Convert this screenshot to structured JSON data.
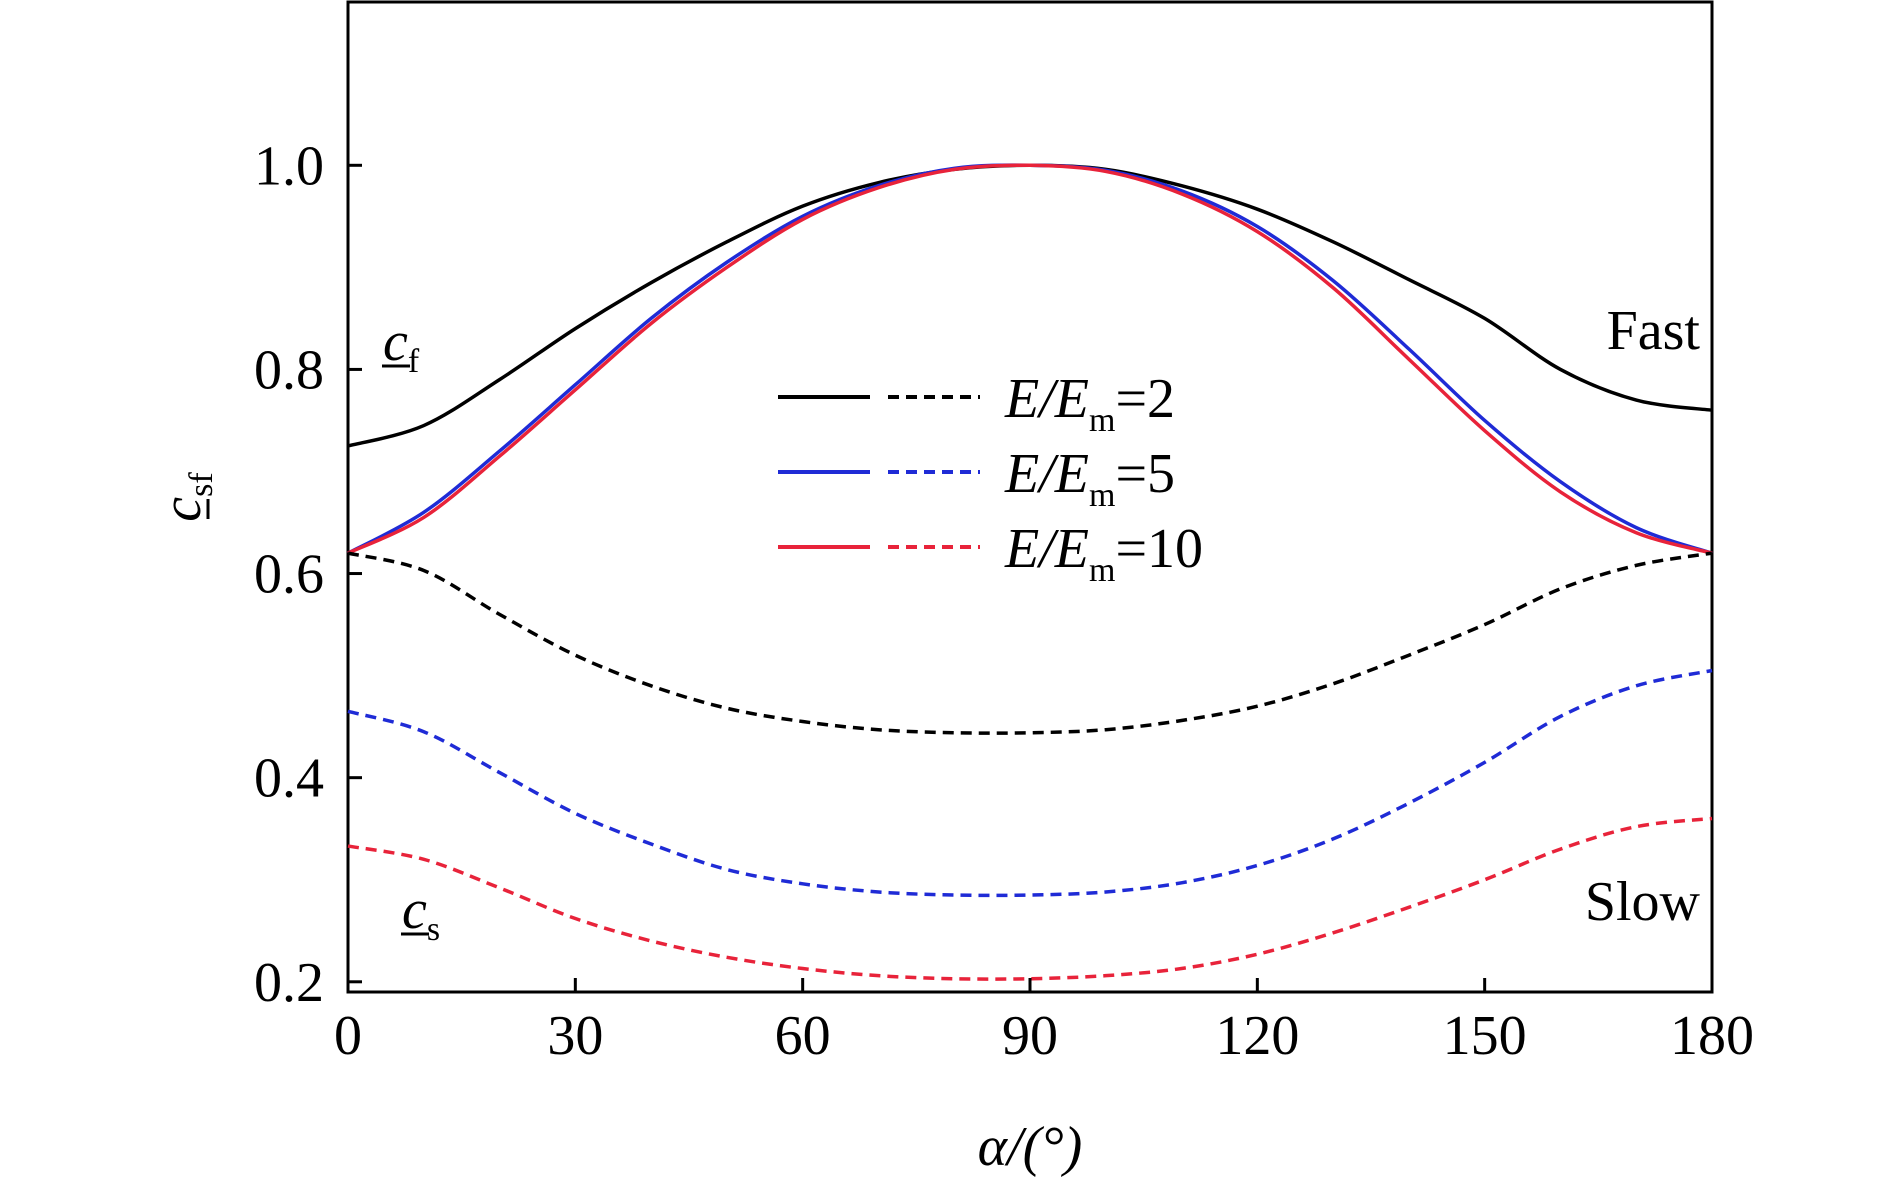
{
  "chart_data": {
    "type": "line",
    "xlabel": "α/(°)",
    "ylabel": "c_sf",
    "xlim": [
      0,
      180
    ],
    "ylim": [
      0.19,
      1.16
    ],
    "x_ticks": [
      "0",
      "30",
      "60",
      "90",
      "120",
      "150",
      "180"
    ],
    "y_ticks": [
      "0.2",
      "0.4",
      "0.6",
      "0.8",
      "1.0"
    ],
    "grid": false,
    "legend_position": "center",
    "legend": [
      {
        "label": "E/Em=2",
        "color": "#000000"
      },
      {
        "label": "E/Em=5",
        "color": "#1f2bd6"
      },
      {
        "label": "E/Em=10",
        "color": "#e8233a"
      }
    ],
    "annotations": {
      "fast_label": "Fast",
      "slow_label": "Slow",
      "cf_label": "c_f",
      "cs_label": "c_s"
    },
    "x": [
      0,
      10,
      20,
      30,
      40,
      50,
      60,
      70,
      80,
      90,
      100,
      110,
      120,
      130,
      140,
      150,
      160,
      170,
      180
    ],
    "series": [
      {
        "color": "#000000",
        "style": "solid",
        "values": [
          0.725,
          0.745,
          0.79,
          0.84,
          0.885,
          0.925,
          0.96,
          0.983,
          0.996,
          1.0,
          0.996,
          0.98,
          0.957,
          0.925,
          0.888,
          0.85,
          0.8,
          0.77,
          0.76
        ]
      },
      {
        "color": "#1f2bd6",
        "style": "solid",
        "values": [
          0.62,
          0.66,
          0.72,
          0.785,
          0.85,
          0.905,
          0.95,
          0.98,
          0.997,
          1.0,
          0.995,
          0.975,
          0.94,
          0.887,
          0.82,
          0.75,
          0.69,
          0.645,
          0.62
        ]
      },
      {
        "color": "#e8233a",
        "style": "solid",
        "values": [
          0.62,
          0.655,
          0.715,
          0.78,
          0.845,
          0.9,
          0.947,
          0.978,
          0.996,
          1.0,
          0.994,
          0.972,
          0.935,
          0.88,
          0.81,
          0.74,
          0.68,
          0.64,
          0.62
        ]
      },
      {
        "color": "#000000",
        "style": "dashed",
        "values": [
          0.62,
          0.603,
          0.56,
          0.52,
          0.49,
          0.468,
          0.455,
          0.447,
          0.444,
          0.444,
          0.447,
          0.456,
          0.47,
          0.492,
          0.52,
          0.55,
          0.585,
          0.608,
          0.62
        ]
      },
      {
        "color": "#1f2bd6",
        "style": "dashed",
        "values": [
          0.465,
          0.445,
          0.405,
          0.365,
          0.335,
          0.31,
          0.296,
          0.288,
          0.285,
          0.285,
          0.288,
          0.297,
          0.314,
          0.34,
          0.375,
          0.415,
          0.46,
          0.49,
          0.505
        ]
      },
      {
        "color": "#e8233a",
        "style": "dashed",
        "values": [
          0.333,
          0.32,
          0.292,
          0.262,
          0.24,
          0.224,
          0.213,
          0.206,
          0.203,
          0.203,
          0.206,
          0.213,
          0.227,
          0.248,
          0.273,
          0.3,
          0.33,
          0.352,
          0.36
        ]
      }
    ]
  }
}
